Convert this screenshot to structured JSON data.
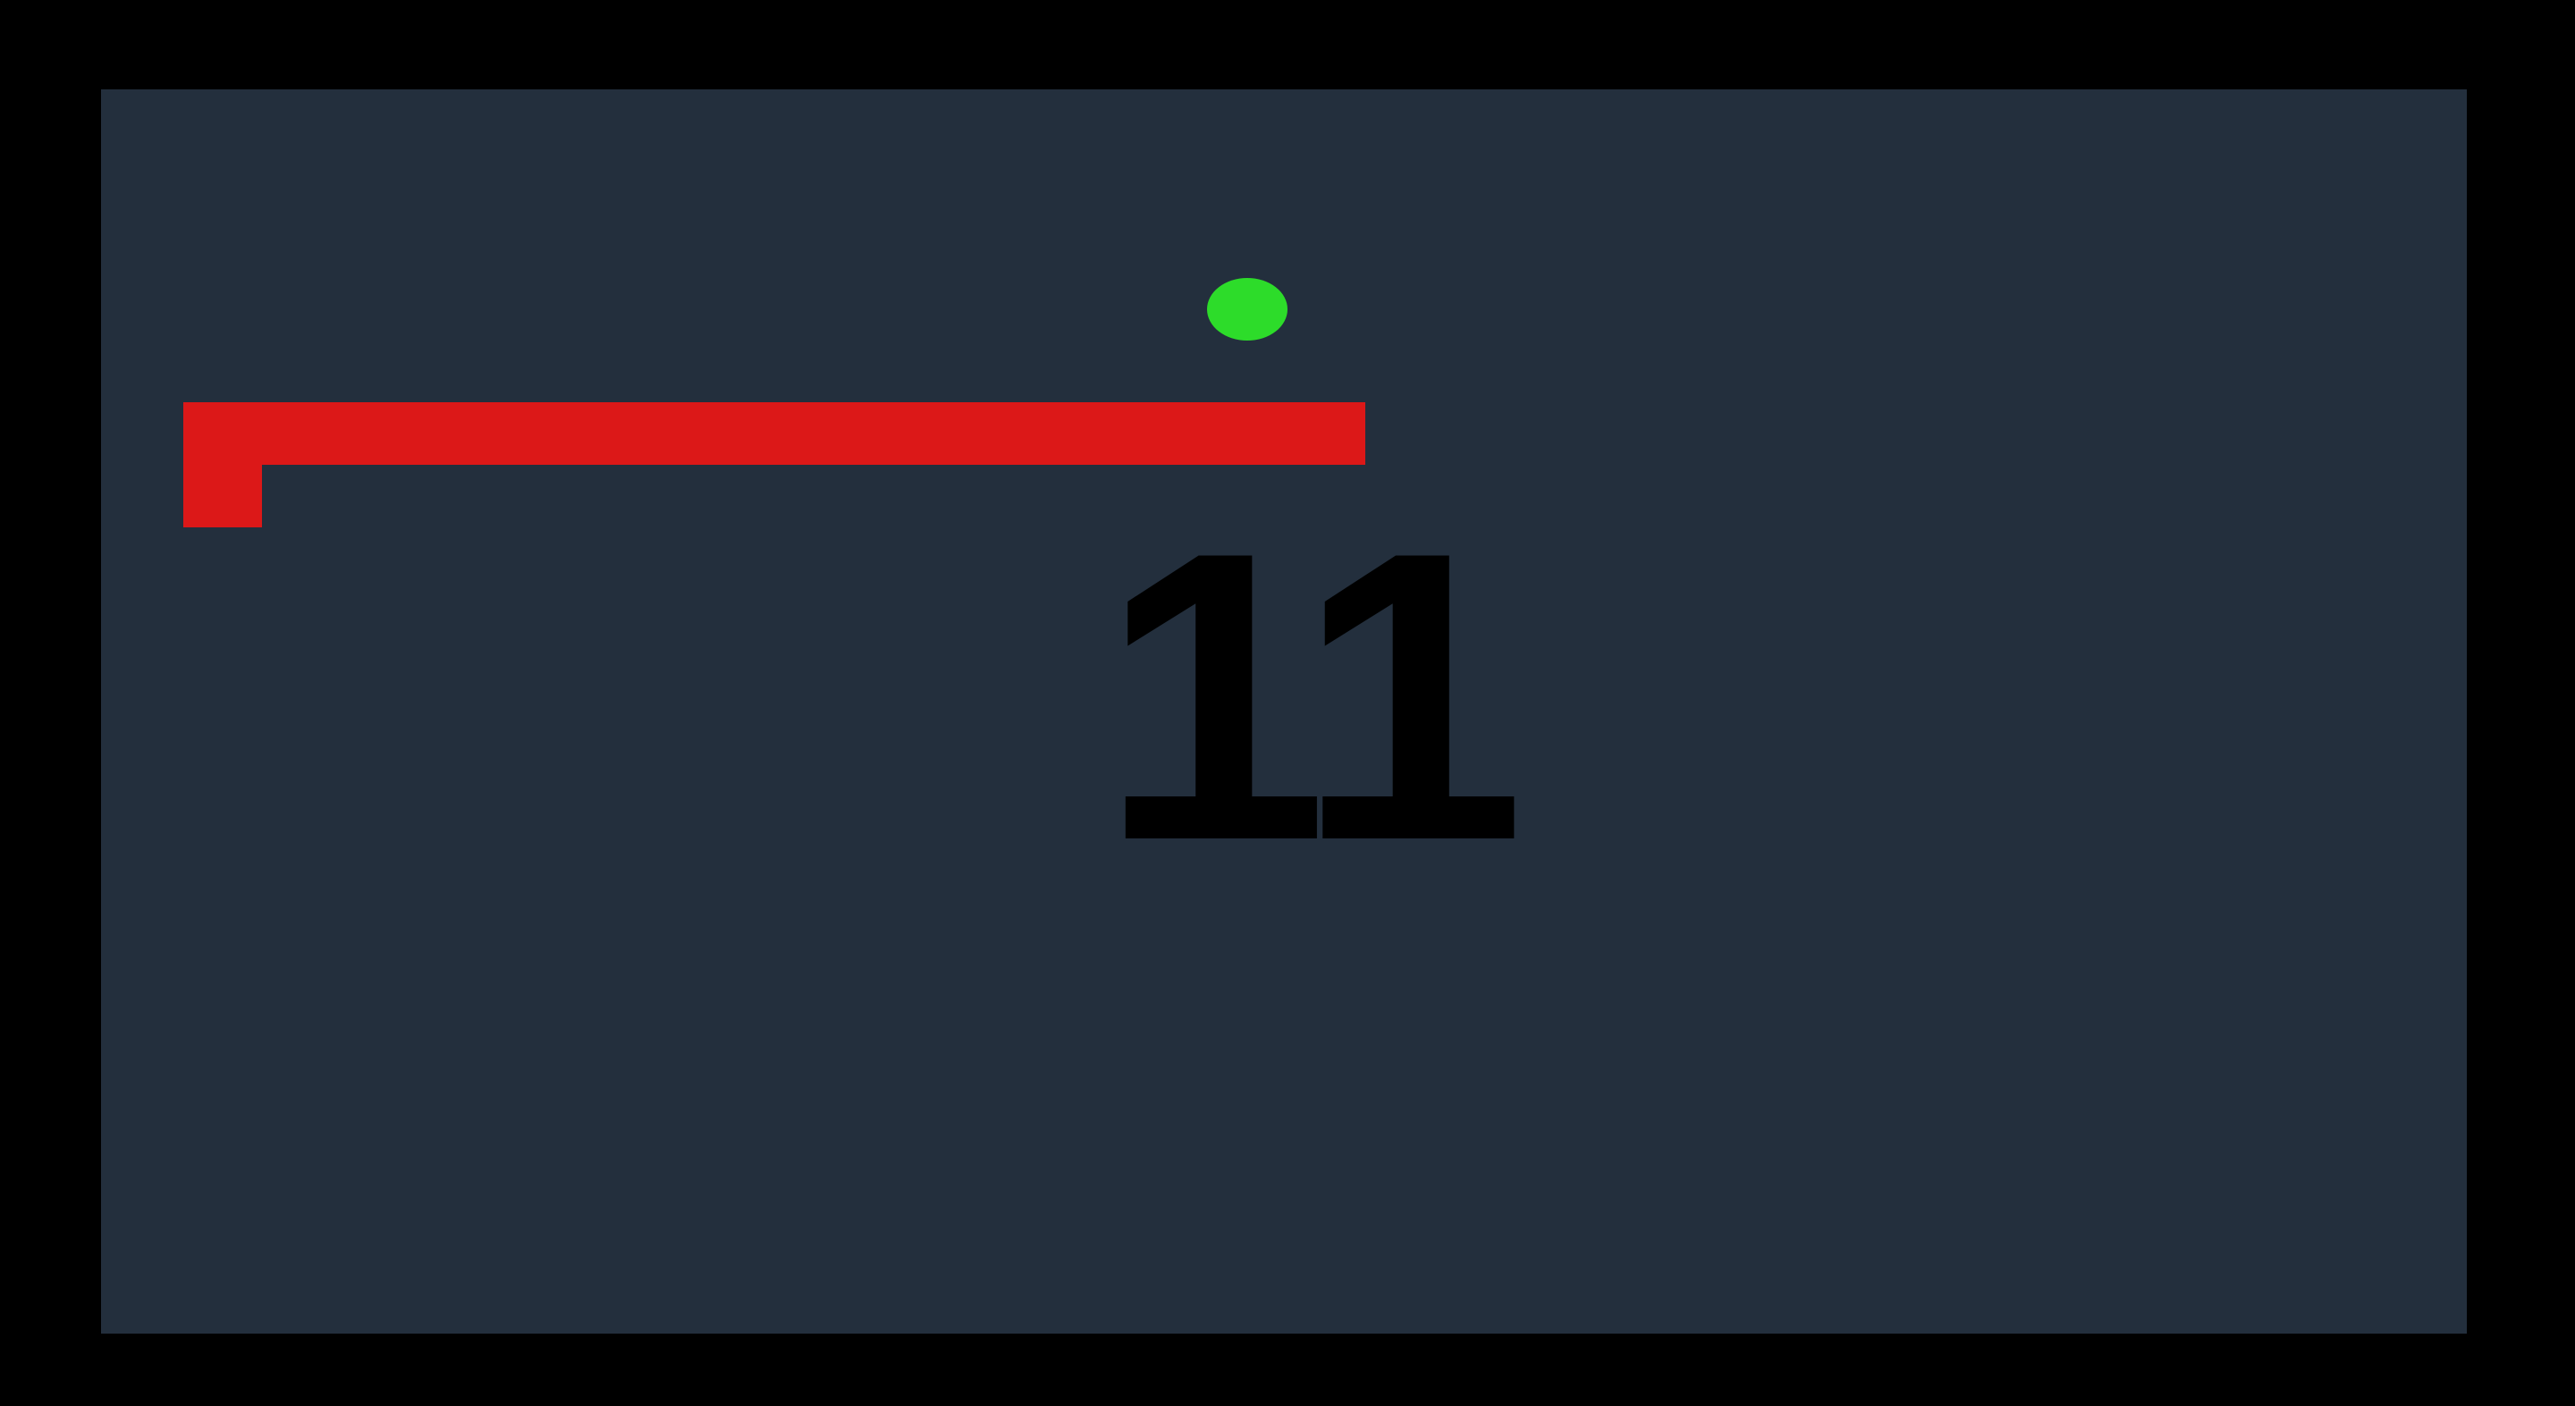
{
  "game": {
    "score": "11"
  },
  "colors": {
    "background": "#000000",
    "board": "#232f3d",
    "snake": "#dc1818",
    "food": "#2ddc2a",
    "score_text": "#000000"
  }
}
